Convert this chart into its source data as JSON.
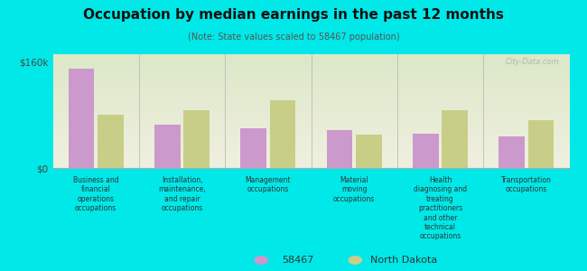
{
  "title": "Occupation by median earnings in the past 12 months",
  "subtitle": "(Note: State values scaled to 58467 population)",
  "background_color": "#00e8e8",
  "plot_bg_top": "#f0f0e0",
  "plot_bg_bottom": "#dce8c8",
  "categories": [
    "Business and\nfinancial\noperations\noccupations",
    "Installation,\nmaintenance,\nand repair\noccupations",
    "Management\noccupations",
    "Material\nmoving\noccupations",
    "Health\ndiagnosing and\ntreating\npractitioners\nand other\ntechnical\noccupations",
    "Transportation\noccupations"
  ],
  "values_58467": [
    150000,
    65000,
    60000,
    58000,
    52000,
    48000
  ],
  "values_nd": [
    80000,
    88000,
    102000,
    50000,
    88000,
    72000
  ],
  "color_58467": "#cc99cc",
  "color_nd": "#c8ce88",
  "ylim": [
    0,
    172000
  ],
  "ytick_vals": [
    0,
    160000
  ],
  "ytick_labels": [
    "$0",
    "$160k"
  ],
  "legend_58467": "58467",
  "legend_nd": "North Dakota",
  "watermark": "City-Data.com"
}
